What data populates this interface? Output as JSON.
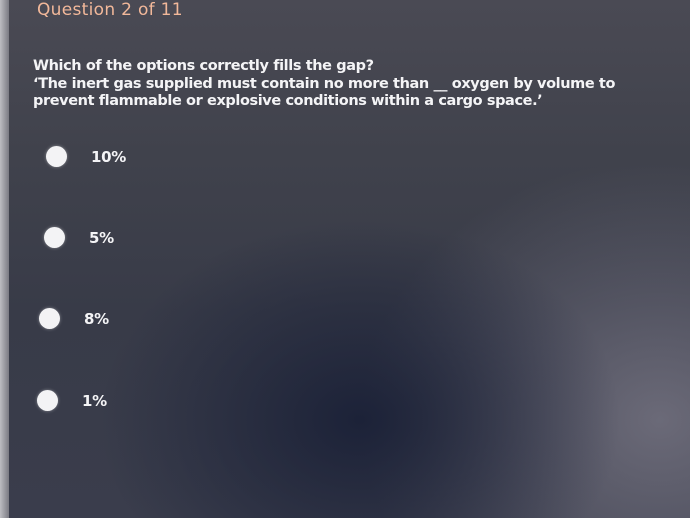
{
  "header": {
    "counter": "Question 2 of 11"
  },
  "question": {
    "prompt": "Which of the options correctly fills the gap?",
    "statement": "‘The inert gas supplied must contain no more than __ oxygen by volume to prevent flammable or explosive conditions within a cargo space.’"
  },
  "options": [
    {
      "label": "10%"
    },
    {
      "label": "5%"
    },
    {
      "label": "8%"
    },
    {
      "label": "1%"
    }
  ]
}
